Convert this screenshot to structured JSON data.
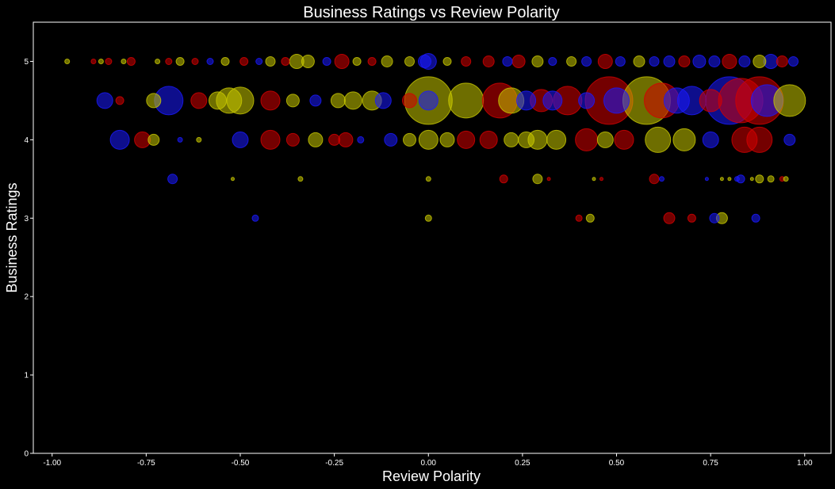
{
  "chart_data": {
    "type": "scatter",
    "title": "Business Ratings vs Review Polarity",
    "xlabel": "Review Polarity",
    "ylabel": "Business Ratings",
    "xlim": [
      -1.05,
      1.07
    ],
    "ylim": [
      0,
      5.5
    ],
    "xticks": [
      "-1.00",
      "-0.75",
      "-0.50",
      "-0.25",
      "0.00",
      "0.25",
      "0.50",
      "0.75",
      "1.00"
    ],
    "xtick_values": [
      -1.0,
      -0.75,
      -0.5,
      -0.25,
      0.0,
      0.25,
      0.5,
      0.75,
      1.0
    ],
    "yticks": [
      "0",
      "1",
      "2",
      "3",
      "4",
      "5"
    ],
    "ytick_values": [
      0,
      1,
      2,
      3,
      4,
      5
    ],
    "grid": false,
    "background": "#000000",
    "colors": {
      "red": "#d40000",
      "yellow": "#c8c800",
      "blue": "#1a1aff"
    },
    "points": [
      {
        "x": -0.96,
        "y": 5.0,
        "s": 3,
        "c": "yellow"
      },
      {
        "x": -0.89,
        "y": 5.0,
        "s": 3,
        "c": "red"
      },
      {
        "x": -0.87,
        "y": 5.0,
        "s": 3,
        "c": "yellow"
      },
      {
        "x": -0.85,
        "y": 5.0,
        "s": 4,
        "c": "red"
      },
      {
        "x": -0.81,
        "y": 5.0,
        "s": 3,
        "c": "yellow"
      },
      {
        "x": -0.79,
        "y": 5.0,
        "s": 5,
        "c": "red"
      },
      {
        "x": -0.72,
        "y": 5.0,
        "s": 3,
        "c": "yellow"
      },
      {
        "x": -0.69,
        "y": 5.0,
        "s": 4,
        "c": "red"
      },
      {
        "x": -0.66,
        "y": 5.0,
        "s": 5,
        "c": "yellow"
      },
      {
        "x": -0.62,
        "y": 5.0,
        "s": 4,
        "c": "red"
      },
      {
        "x": -0.58,
        "y": 5.0,
        "s": 4,
        "c": "blue"
      },
      {
        "x": -0.54,
        "y": 5.0,
        "s": 5,
        "c": "yellow"
      },
      {
        "x": -0.49,
        "y": 5.0,
        "s": 5,
        "c": "red"
      },
      {
        "x": -0.45,
        "y": 5.0,
        "s": 4,
        "c": "blue"
      },
      {
        "x": -0.42,
        "y": 5.0,
        "s": 6,
        "c": "yellow"
      },
      {
        "x": -0.38,
        "y": 5.0,
        "s": 5,
        "c": "red"
      },
      {
        "x": -0.35,
        "y": 5.0,
        "s": 9,
        "c": "yellow"
      },
      {
        "x": -0.32,
        "y": 5.0,
        "s": 8,
        "c": "yellow"
      },
      {
        "x": -0.27,
        "y": 5.0,
        "s": 5,
        "c": "blue"
      },
      {
        "x": -0.23,
        "y": 5.0,
        "s": 9,
        "c": "red"
      },
      {
        "x": -0.19,
        "y": 5.0,
        "s": 5,
        "c": "yellow"
      },
      {
        "x": -0.15,
        "y": 5.0,
        "s": 5,
        "c": "red"
      },
      {
        "x": -0.11,
        "y": 5.0,
        "s": 7,
        "c": "yellow"
      },
      {
        "x": -0.05,
        "y": 5.0,
        "s": 6,
        "c": "yellow"
      },
      {
        "x": -0.01,
        "y": 5.0,
        "s": 8,
        "c": "blue"
      },
      {
        "x": 0.0,
        "y": 5.0,
        "s": 10,
        "c": "blue"
      },
      {
        "x": 0.05,
        "y": 5.0,
        "s": 5,
        "c": "yellow"
      },
      {
        "x": 0.1,
        "y": 5.0,
        "s": 6,
        "c": "red"
      },
      {
        "x": 0.16,
        "y": 5.0,
        "s": 7,
        "c": "red"
      },
      {
        "x": 0.21,
        "y": 5.0,
        "s": 6,
        "c": "blue"
      },
      {
        "x": 0.24,
        "y": 5.0,
        "s": 8,
        "c": "red"
      },
      {
        "x": 0.29,
        "y": 5.0,
        "s": 7,
        "c": "yellow"
      },
      {
        "x": 0.33,
        "y": 5.0,
        "s": 5,
        "c": "blue"
      },
      {
        "x": 0.38,
        "y": 5.0,
        "s": 6,
        "c": "yellow"
      },
      {
        "x": 0.42,
        "y": 5.0,
        "s": 6,
        "c": "blue"
      },
      {
        "x": 0.47,
        "y": 5.0,
        "s": 9,
        "c": "red"
      },
      {
        "x": 0.51,
        "y": 5.0,
        "s": 6,
        "c": "blue"
      },
      {
        "x": 0.56,
        "y": 5.0,
        "s": 7,
        "c": "yellow"
      },
      {
        "x": 0.6,
        "y": 5.0,
        "s": 6,
        "c": "blue"
      },
      {
        "x": 0.64,
        "y": 5.0,
        "s": 7,
        "c": "blue"
      },
      {
        "x": 0.68,
        "y": 5.0,
        "s": 7,
        "c": "red"
      },
      {
        "x": 0.72,
        "y": 5.0,
        "s": 8,
        "c": "blue"
      },
      {
        "x": 0.76,
        "y": 5.0,
        "s": 7,
        "c": "blue"
      },
      {
        "x": 0.8,
        "y": 5.0,
        "s": 9,
        "c": "red"
      },
      {
        "x": 0.84,
        "y": 5.0,
        "s": 7,
        "c": "blue"
      },
      {
        "x": 0.88,
        "y": 5.0,
        "s": 8,
        "c": "yellow"
      },
      {
        "x": 0.91,
        "y": 5.0,
        "s": 9,
        "c": "blue"
      },
      {
        "x": 0.94,
        "y": 5.0,
        "s": 7,
        "c": "red"
      },
      {
        "x": 0.97,
        "y": 5.0,
        "s": 6,
        "c": "blue"
      },
      {
        "x": -0.86,
        "y": 4.5,
        "s": 10,
        "c": "blue"
      },
      {
        "x": -0.82,
        "y": 4.5,
        "s": 5,
        "c": "red"
      },
      {
        "x": -0.73,
        "y": 4.5,
        "s": 9,
        "c": "yellow"
      },
      {
        "x": -0.69,
        "y": 4.5,
        "s": 18,
        "c": "blue"
      },
      {
        "x": -0.61,
        "y": 4.5,
        "s": 10,
        "c": "red"
      },
      {
        "x": -0.56,
        "y": 4.5,
        "s": 11,
        "c": "yellow"
      },
      {
        "x": -0.53,
        "y": 4.5,
        "s": 16,
        "c": "yellow"
      },
      {
        "x": -0.5,
        "y": 4.5,
        "s": 17,
        "c": "yellow"
      },
      {
        "x": -0.42,
        "y": 4.5,
        "s": 12,
        "c": "red"
      },
      {
        "x": -0.36,
        "y": 4.5,
        "s": 8,
        "c": "yellow"
      },
      {
        "x": -0.3,
        "y": 4.5,
        "s": 7,
        "c": "blue"
      },
      {
        "x": -0.24,
        "y": 4.5,
        "s": 9,
        "c": "yellow"
      },
      {
        "x": -0.2,
        "y": 4.5,
        "s": 11,
        "c": "yellow"
      },
      {
        "x": -0.15,
        "y": 4.5,
        "s": 12,
        "c": "yellow"
      },
      {
        "x": -0.12,
        "y": 4.5,
        "s": 10,
        "c": "blue"
      },
      {
        "x": -0.05,
        "y": 4.5,
        "s": 9,
        "c": "red"
      },
      {
        "x": 0.0,
        "y": 4.5,
        "s": 30,
        "c": "yellow"
      },
      {
        "x": 0.0,
        "y": 4.5,
        "s": 12,
        "c": "blue"
      },
      {
        "x": 0.1,
        "y": 4.5,
        "s": 22,
        "c": "yellow"
      },
      {
        "x": 0.19,
        "y": 4.5,
        "s": 22,
        "c": "red"
      },
      {
        "x": 0.22,
        "y": 4.5,
        "s": 16,
        "c": "yellow"
      },
      {
        "x": 0.26,
        "y": 4.5,
        "s": 12,
        "c": "blue"
      },
      {
        "x": 0.3,
        "y": 4.5,
        "s": 14,
        "c": "red"
      },
      {
        "x": 0.33,
        "y": 4.5,
        "s": 12,
        "c": "blue"
      },
      {
        "x": 0.37,
        "y": 4.5,
        "s": 18,
        "c": "red"
      },
      {
        "x": 0.42,
        "y": 4.5,
        "s": 10,
        "c": "blue"
      },
      {
        "x": 0.48,
        "y": 4.5,
        "s": 30,
        "c": "red"
      },
      {
        "x": 0.5,
        "y": 4.5,
        "s": 16,
        "c": "blue"
      },
      {
        "x": 0.58,
        "y": 4.5,
        "s": 30,
        "c": "yellow"
      },
      {
        "x": 0.62,
        "y": 4.5,
        "s": 22,
        "c": "red"
      },
      {
        "x": 0.66,
        "y": 4.5,
        "s": 16,
        "c": "blue"
      },
      {
        "x": 0.7,
        "y": 4.5,
        "s": 18,
        "c": "blue"
      },
      {
        "x": 0.75,
        "y": 4.5,
        "s": 14,
        "c": "red"
      },
      {
        "x": 0.8,
        "y": 4.5,
        "s": 30,
        "c": "blue"
      },
      {
        "x": 0.83,
        "y": 4.5,
        "s": 28,
        "c": "red"
      },
      {
        "x": 0.88,
        "y": 4.5,
        "s": 30,
        "c": "red"
      },
      {
        "x": 0.9,
        "y": 4.5,
        "s": 20,
        "c": "blue"
      },
      {
        "x": 0.96,
        "y": 4.5,
        "s": 20,
        "c": "yellow"
      },
      {
        "x": -0.82,
        "y": 4.0,
        "s": 12,
        "c": "blue"
      },
      {
        "x": -0.76,
        "y": 4.0,
        "s": 10,
        "c": "red"
      },
      {
        "x": -0.73,
        "y": 4.0,
        "s": 7,
        "c": "yellow"
      },
      {
        "x": -0.66,
        "y": 4.0,
        "s": 3,
        "c": "blue"
      },
      {
        "x": -0.61,
        "y": 4.0,
        "s": 3,
        "c": "yellow"
      },
      {
        "x": -0.5,
        "y": 4.0,
        "s": 10,
        "c": "blue"
      },
      {
        "x": -0.42,
        "y": 4.0,
        "s": 12,
        "c": "red"
      },
      {
        "x": -0.36,
        "y": 4.0,
        "s": 8,
        "c": "red"
      },
      {
        "x": -0.3,
        "y": 4.0,
        "s": 9,
        "c": "yellow"
      },
      {
        "x": -0.25,
        "y": 4.0,
        "s": 7,
        "c": "red"
      },
      {
        "x": -0.22,
        "y": 4.0,
        "s": 9,
        "c": "red"
      },
      {
        "x": -0.18,
        "y": 4.0,
        "s": 4,
        "c": "blue"
      },
      {
        "x": -0.1,
        "y": 4.0,
        "s": 8,
        "c": "blue"
      },
      {
        "x": -0.05,
        "y": 4.0,
        "s": 8,
        "c": "yellow"
      },
      {
        "x": 0.0,
        "y": 4.0,
        "s": 12,
        "c": "yellow"
      },
      {
        "x": 0.05,
        "y": 4.0,
        "s": 9,
        "c": "yellow"
      },
      {
        "x": 0.1,
        "y": 4.0,
        "s": 11,
        "c": "red"
      },
      {
        "x": 0.16,
        "y": 4.0,
        "s": 11,
        "c": "red"
      },
      {
        "x": 0.22,
        "y": 4.0,
        "s": 9,
        "c": "yellow"
      },
      {
        "x": 0.26,
        "y": 4.0,
        "s": 10,
        "c": "yellow"
      },
      {
        "x": 0.29,
        "y": 4.0,
        "s": 12,
        "c": "yellow"
      },
      {
        "x": 0.34,
        "y": 4.0,
        "s": 12,
        "c": "yellow"
      },
      {
        "x": 0.42,
        "y": 4.0,
        "s": 14,
        "c": "red"
      },
      {
        "x": 0.47,
        "y": 4.0,
        "s": 10,
        "c": "yellow"
      },
      {
        "x": 0.52,
        "y": 4.0,
        "s": 12,
        "c": "red"
      },
      {
        "x": 0.61,
        "y": 4.0,
        "s": 16,
        "c": "yellow"
      },
      {
        "x": 0.68,
        "y": 4.0,
        "s": 14,
        "c": "yellow"
      },
      {
        "x": 0.75,
        "y": 4.0,
        "s": 10,
        "c": "blue"
      },
      {
        "x": 0.84,
        "y": 4.0,
        "s": 16,
        "c": "red"
      },
      {
        "x": 0.88,
        "y": 4.0,
        "s": 16,
        "c": "red"
      },
      {
        "x": 0.96,
        "y": 4.0,
        "s": 7,
        "c": "blue"
      },
      {
        "x": -0.68,
        "y": 3.5,
        "s": 6,
        "c": "blue"
      },
      {
        "x": -0.52,
        "y": 3.5,
        "s": 2,
        "c": "yellow"
      },
      {
        "x": -0.34,
        "y": 3.5,
        "s": 3,
        "c": "yellow"
      },
      {
        "x": 0.0,
        "y": 3.5,
        "s": 3,
        "c": "yellow"
      },
      {
        "x": 0.2,
        "y": 3.5,
        "s": 5,
        "c": "red"
      },
      {
        "x": 0.29,
        "y": 3.5,
        "s": 6,
        "c": "yellow"
      },
      {
        "x": 0.32,
        "y": 3.5,
        "s": 2,
        "c": "red"
      },
      {
        "x": 0.44,
        "y": 3.5,
        "s": 2,
        "c": "yellow"
      },
      {
        "x": 0.46,
        "y": 3.5,
        "s": 2,
        "c": "red"
      },
      {
        "x": 0.6,
        "y": 3.5,
        "s": 6,
        "c": "red"
      },
      {
        "x": 0.62,
        "y": 3.5,
        "s": 3,
        "c": "blue"
      },
      {
        "x": 0.74,
        "y": 3.5,
        "s": 2,
        "c": "blue"
      },
      {
        "x": 0.78,
        "y": 3.5,
        "s": 2,
        "c": "yellow"
      },
      {
        "x": 0.8,
        "y": 3.5,
        "s": 2,
        "c": "yellow"
      },
      {
        "x": 0.82,
        "y": 3.5,
        "s": 3,
        "c": "blue"
      },
      {
        "x": 0.83,
        "y": 3.5,
        "s": 5,
        "c": "blue"
      },
      {
        "x": 0.86,
        "y": 3.5,
        "s": 2,
        "c": "yellow"
      },
      {
        "x": 0.88,
        "y": 3.5,
        "s": 5,
        "c": "yellow"
      },
      {
        "x": 0.91,
        "y": 3.5,
        "s": 4,
        "c": "yellow"
      },
      {
        "x": 0.94,
        "y": 3.5,
        "s": 3,
        "c": "red"
      },
      {
        "x": 0.95,
        "y": 3.5,
        "s": 3,
        "c": "yellow"
      },
      {
        "x": -0.46,
        "y": 3.0,
        "s": 4,
        "c": "blue"
      },
      {
        "x": 0.0,
        "y": 3.0,
        "s": 4,
        "c": "yellow"
      },
      {
        "x": 0.4,
        "y": 3.0,
        "s": 4,
        "c": "red"
      },
      {
        "x": 0.43,
        "y": 3.0,
        "s": 5,
        "c": "yellow"
      },
      {
        "x": 0.64,
        "y": 3.0,
        "s": 7,
        "c": "red"
      },
      {
        "x": 0.7,
        "y": 3.0,
        "s": 5,
        "c": "red"
      },
      {
        "x": 0.76,
        "y": 3.0,
        "s": 6,
        "c": "blue"
      },
      {
        "x": 0.78,
        "y": 3.0,
        "s": 7,
        "c": "yellow"
      },
      {
        "x": 0.87,
        "y": 3.0,
        "s": 5,
        "c": "blue"
      }
    ]
  }
}
